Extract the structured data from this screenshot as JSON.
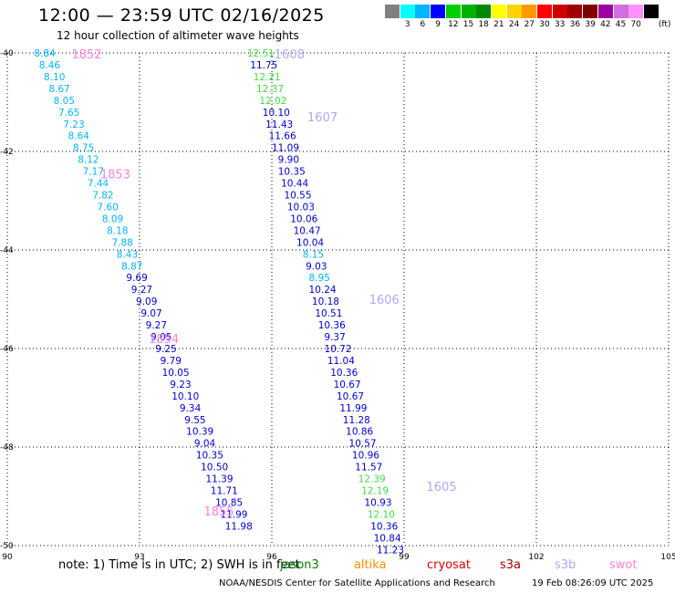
{
  "title": "12:00 — 23:59 UTC 02/16/2025",
  "subtitle": "12 hour collection of altimeter wave heights",
  "legend": {
    "unit": "(ft)",
    "bins": [
      {
        "label": "",
        "color": "#808080"
      },
      {
        "label": "3",
        "color": "#00ffff"
      },
      {
        "label": "6",
        "color": "#00b4ff"
      },
      {
        "label": "9",
        "color": "#0000ff"
      },
      {
        "label": "12",
        "color": "#00d000"
      },
      {
        "label": "15",
        "color": "#00b000"
      },
      {
        "label": "18",
        "color": "#008800"
      },
      {
        "label": "21",
        "color": "#ffff00"
      },
      {
        "label": "24",
        "color": "#ffd200"
      },
      {
        "label": "27",
        "color": "#ff9a00"
      },
      {
        "label": "30",
        "color": "#ff0000"
      },
      {
        "label": "33",
        "color": "#d00000"
      },
      {
        "label": "36",
        "color": "#a00000"
      },
      {
        "label": "39",
        "color": "#800000"
      },
      {
        "label": "42",
        "color": "#a000a0"
      },
      {
        "label": "45",
        "color": "#d070e0"
      },
      {
        "label": "70",
        "color": "#ff90ff"
      },
      {
        "label": "",
        "color": "#000000"
      }
    ]
  },
  "axes": {
    "lon_ticks": [
      "90",
      "93",
      "96",
      "99",
      "102",
      "105"
    ],
    "lat_ticks": [
      "-40",
      "-42",
      "-44",
      "-46",
      "-48",
      "-50"
    ],
    "lon_range": [
      90,
      105
    ],
    "lat_range": [
      -40,
      -50
    ]
  },
  "note": "note:  1) Time is in UTC;  2) SWH is in feet",
  "satellites": [
    {
      "name": "jason3",
      "color": "#008000"
    },
    {
      "name": "altika",
      "color": "#ff8c00"
    },
    {
      "name": "cryosat",
      "color": "#e00000"
    },
    {
      "name": "s3a",
      "color": "#a00000"
    },
    {
      "name": "s3b",
      "color": "#b0a8f0"
    },
    {
      "name": "swot",
      "color": "#ff80e0"
    }
  ],
  "credit": "NOAA/NESDIS Center for Satellite Applications and Research",
  "timestamp": "19 Feb 08:26:09 UTC 2025",
  "tracks": [
    {
      "times": [
        {
          "label": "1852",
          "lat": -40.02,
          "lon": 91.8,
          "color": "#ff80e0"
        },
        {
          "label": "1853",
          "lat": -42.45,
          "lon": 92.45,
          "color": "#ff80e0"
        },
        {
          "label": "1854",
          "lat": -45.8,
          "lon": 93.55,
          "color": "#ff80e0"
        },
        {
          "label": "1855",
          "lat": -49.3,
          "lon": 94.8,
          "color": "#ff80e0"
        }
      ],
      "points": [
        {
          "v": "8.84",
          "lat": -40.0,
          "lon": 90.85,
          "color": "#00b4ff"
        },
        {
          "v": "8.46",
          "lat": -40.24,
          "lon": 90.96,
          "color": "#00b4ff"
        },
        {
          "v": "8.10",
          "lat": -40.48,
          "lon": 91.07,
          "color": "#00b4ff"
        },
        {
          "v": "8.67",
          "lat": -40.72,
          "lon": 91.18,
          "color": "#00b4ff"
        },
        {
          "v": "8.05",
          "lat": -40.96,
          "lon": 91.29,
          "color": "#00b4ff"
        },
        {
          "v": "7.65",
          "lat": -41.2,
          "lon": 91.4,
          "color": "#00b4ff"
        },
        {
          "v": "7.23",
          "lat": -41.44,
          "lon": 91.51,
          "color": "#00b4ff"
        },
        {
          "v": "8.64",
          "lat": -41.68,
          "lon": 91.62,
          "color": "#00b4ff"
        },
        {
          "v": "8.75",
          "lat": -41.92,
          "lon": 91.73,
          "color": "#00b4ff"
        },
        {
          "v": "8.12",
          "lat": -42.16,
          "lon": 91.84,
          "color": "#00b4ff"
        },
        {
          "v": "7.17",
          "lat": -42.4,
          "lon": 91.95,
          "color": "#00b4ff"
        },
        {
          "v": "7.44",
          "lat": -42.64,
          "lon": 92.06,
          "color": "#00b4ff"
        },
        {
          "v": "7.82",
          "lat": -42.88,
          "lon": 92.17,
          "color": "#00b4ff"
        },
        {
          "v": "7.60",
          "lat": -43.12,
          "lon": 92.28,
          "color": "#00b4ff"
        },
        {
          "v": "8.09",
          "lat": -43.36,
          "lon": 92.39,
          "color": "#00b4ff"
        },
        {
          "v": "8.18",
          "lat": -43.6,
          "lon": 92.5,
          "color": "#00b4ff"
        },
        {
          "v": "7.88",
          "lat": -43.84,
          "lon": 92.61,
          "color": "#00b4ff"
        },
        {
          "v": "8.43",
          "lat": -44.08,
          "lon": 92.72,
          "color": "#00b4ff"
        },
        {
          "v": "8.87",
          "lat": -44.32,
          "lon": 92.83,
          "color": "#00b4ff"
        },
        {
          "v": "9.69",
          "lat": -44.56,
          "lon": 92.94,
          "color": "#0000cd"
        },
        {
          "v": "9.27",
          "lat": -44.8,
          "lon": 93.05,
          "color": "#0000cd"
        },
        {
          "v": "9.09",
          "lat": -45.04,
          "lon": 93.16,
          "color": "#0000cd"
        },
        {
          "v": "9.07",
          "lat": -45.28,
          "lon": 93.27,
          "color": "#0000cd"
        },
        {
          "v": "9.27",
          "lat": -45.52,
          "lon": 93.38,
          "color": "#0000cd"
        },
        {
          "v": "9.05",
          "lat": -45.76,
          "lon": 93.49,
          "color": "#0000cd"
        },
        {
          "v": "9.25",
          "lat": -46.0,
          "lon": 93.6,
          "color": "#0000cd"
        },
        {
          "v": "9.79",
          "lat": -46.24,
          "lon": 93.71,
          "color": "#0000cd"
        },
        {
          "v": "10.05",
          "lat": -46.48,
          "lon": 93.82,
          "color": "#0000cd"
        },
        {
          "v": "9.23",
          "lat": -46.72,
          "lon": 93.93,
          "color": "#0000cd"
        },
        {
          "v": "10.10",
          "lat": -46.96,
          "lon": 94.04,
          "color": "#0000cd"
        },
        {
          "v": "9.34",
          "lat": -47.2,
          "lon": 94.15,
          "color": "#0000cd"
        },
        {
          "v": "9.55",
          "lat": -47.44,
          "lon": 94.26,
          "color": "#0000cd"
        },
        {
          "v": "10.39",
          "lat": -47.68,
          "lon": 94.37,
          "color": "#0000cd"
        },
        {
          "v": "9.04",
          "lat": -47.92,
          "lon": 94.48,
          "color": "#0000cd"
        },
        {
          "v": "10.35",
          "lat": -48.16,
          "lon": 94.59,
          "color": "#0000cd"
        },
        {
          "v": "10.50",
          "lat": -48.4,
          "lon": 94.7,
          "color": "#0000cd"
        },
        {
          "v": "11.39",
          "lat": -48.64,
          "lon": 94.81,
          "color": "#0000cd"
        },
        {
          "v": "11.71",
          "lat": -48.88,
          "lon": 94.92,
          "color": "#0000cd"
        },
        {
          "v": "10.85",
          "lat": -49.12,
          "lon": 95.03,
          "color": "#0000cd"
        },
        {
          "v": "11.99",
          "lat": -49.36,
          "lon": 95.14,
          "color": "#0000cd"
        },
        {
          "v": "11.98",
          "lat": -49.6,
          "lon": 95.25,
          "color": "#0000cd"
        }
      ]
    },
    {
      "times": [
        {
          "label": "1608",
          "lat": -40.02,
          "lon": 96.4,
          "color": "#b0a8f0"
        },
        {
          "label": "1607",
          "lat": -41.3,
          "lon": 97.15,
          "color": "#b0a8f0"
        },
        {
          "label": "1606",
          "lat": -45.0,
          "lon": 98.55,
          "color": "#b0a8f0"
        },
        {
          "label": "1605",
          "lat": -48.8,
          "lon": 99.85,
          "color": "#b0a8f0"
        }
      ],
      "points": [
        {
          "v": "12.51",
          "lat": -40.0,
          "lon": 95.75,
          "color": "#44dd44"
        },
        {
          "v": "11.75",
          "lat": -40.24,
          "lon": 95.82,
          "color": "#0000cd"
        },
        {
          "v": "12.21",
          "lat": -40.48,
          "lon": 95.89,
          "color": "#44dd44"
        },
        {
          "v": "12.37",
          "lat": -40.72,
          "lon": 95.96,
          "color": "#44dd44"
        },
        {
          "v": "12.02",
          "lat": -40.96,
          "lon": 96.03,
          "color": "#44dd44"
        },
        {
          "v": "10.10",
          "lat": -41.2,
          "lon": 96.1,
          "color": "#0000cd"
        },
        {
          "v": "11.43",
          "lat": -41.44,
          "lon": 96.17,
          "color": "#0000cd"
        },
        {
          "v": "11.66",
          "lat": -41.68,
          "lon": 96.24,
          "color": "#0000cd"
        },
        {
          "v": "11.09",
          "lat": -41.92,
          "lon": 96.31,
          "color": "#0000cd"
        },
        {
          "v": "9.90",
          "lat": -42.16,
          "lon": 96.38,
          "color": "#0000cd"
        },
        {
          "v": "10.35",
          "lat": -42.4,
          "lon": 96.45,
          "color": "#0000cd"
        },
        {
          "v": "10.44",
          "lat": -42.64,
          "lon": 96.52,
          "color": "#0000cd"
        },
        {
          "v": "10.55",
          "lat": -42.88,
          "lon": 96.59,
          "color": "#0000cd"
        },
        {
          "v": "10.03",
          "lat": -43.12,
          "lon": 96.66,
          "color": "#0000cd"
        },
        {
          "v": "10.06",
          "lat": -43.36,
          "lon": 96.73,
          "color": "#0000cd"
        },
        {
          "v": "10.47",
          "lat": -43.6,
          "lon": 96.8,
          "color": "#0000cd"
        },
        {
          "v": "10.04",
          "lat": -43.84,
          "lon": 96.87,
          "color": "#0000cd"
        },
        {
          "v": "8.15",
          "lat": -44.08,
          "lon": 96.94,
          "color": "#00b4ff"
        },
        {
          "v": "9.03",
          "lat": -44.32,
          "lon": 97.01,
          "color": "#0000cd"
        },
        {
          "v": "8.95",
          "lat": -44.56,
          "lon": 97.08,
          "color": "#00b4ff"
        },
        {
          "v": "10.24",
          "lat": -44.8,
          "lon": 97.15,
          "color": "#0000cd"
        },
        {
          "v": "10.18",
          "lat": -45.04,
          "lon": 97.22,
          "color": "#0000cd"
        },
        {
          "v": "10.51",
          "lat": -45.28,
          "lon": 97.29,
          "color": "#0000cd"
        },
        {
          "v": "10.36",
          "lat": -45.52,
          "lon": 97.36,
          "color": "#0000cd"
        },
        {
          "v": "9.37",
          "lat": -45.76,
          "lon": 97.43,
          "color": "#0000cd"
        },
        {
          "v": "10.72",
          "lat": -46.0,
          "lon": 97.5,
          "color": "#0000cd"
        },
        {
          "v": "11.04",
          "lat": -46.24,
          "lon": 97.57,
          "color": "#0000cd"
        },
        {
          "v": "10.36",
          "lat": -46.48,
          "lon": 97.64,
          "color": "#0000cd"
        },
        {
          "v": "10.67",
          "lat": -46.72,
          "lon": 97.71,
          "color": "#0000cd"
        },
        {
          "v": "10.67",
          "lat": -46.96,
          "lon": 97.78,
          "color": "#0000cd"
        },
        {
          "v": "11.99",
          "lat": -47.2,
          "lon": 97.85,
          "color": "#0000cd"
        },
        {
          "v": "11.28",
          "lat": -47.44,
          "lon": 97.92,
          "color": "#0000cd"
        },
        {
          "v": "10.86",
          "lat": -47.68,
          "lon": 97.99,
          "color": "#0000cd"
        },
        {
          "v": "10.57",
          "lat": -47.92,
          "lon": 98.06,
          "color": "#0000cd"
        },
        {
          "v": "10.96",
          "lat": -48.16,
          "lon": 98.13,
          "color": "#0000cd"
        },
        {
          "v": "11.57",
          "lat": -48.4,
          "lon": 98.2,
          "color": "#0000cd"
        },
        {
          "v": "12.39",
          "lat": -48.64,
          "lon": 98.27,
          "color": "#44dd44"
        },
        {
          "v": "12.19",
          "lat": -48.88,
          "lon": 98.34,
          "color": "#44dd44"
        },
        {
          "v": "10.93",
          "lat": -49.12,
          "lon": 98.41,
          "color": "#0000cd"
        },
        {
          "v": "12.10",
          "lat": -49.36,
          "lon": 98.48,
          "color": "#44dd44"
        },
        {
          "v": "10.36",
          "lat": -49.6,
          "lon": 98.55,
          "color": "#0000cd"
        },
        {
          "v": "10.84",
          "lat": -49.84,
          "lon": 98.62,
          "color": "#0000cd"
        },
        {
          "v": "11.23",
          "lat": -50.08,
          "lon": 98.69,
          "color": "#0000cd"
        }
      ]
    }
  ]
}
